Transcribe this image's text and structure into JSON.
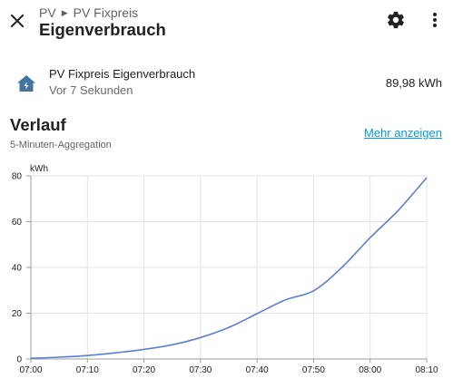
{
  "header": {
    "breadcrumb_parent": "PV",
    "breadcrumb_child": "PV Fixpreis",
    "title": "Eigenverbrauch"
  },
  "entity": {
    "icon": "home-lightning-icon",
    "name": "PV Fixpreis Eigenverbrauch",
    "last_changed": "Vor 7 Sekunden",
    "state": "89,98 kWh"
  },
  "history": {
    "title": "Verlauf",
    "subtitle": "5-Minuten-Aggregation",
    "more_label": "Mehr anzeigen"
  },
  "colors": {
    "accent": "#039be5",
    "line": "#5c7fd4"
  },
  "chart_data": {
    "type": "line",
    "unit": "kWh",
    "x": [
      "07:00",
      "07:05",
      "07:10",
      "07:15",
      "07:20",
      "07:25",
      "07:30",
      "07:35",
      "07:40",
      "07:45",
      "07:50",
      "07:55",
      "08:00",
      "08:05",
      "08:10"
    ],
    "x_ticks": [
      "07:00",
      "07:10",
      "07:20",
      "07:30",
      "07:40",
      "07:50",
      "08:00",
      "08:10"
    ],
    "y_ticks": [
      0,
      20,
      40,
      60,
      80
    ],
    "ylim": [
      0,
      80
    ],
    "grid": true,
    "series": [
      {
        "values": [
          0.3,
          0.8,
          1.5,
          2.7,
          4.2,
          6.2,
          9.4,
          13.8,
          19.8,
          25.8,
          29.8,
          40.0,
          53.0,
          65.0,
          79.2
        ]
      }
    ]
  }
}
